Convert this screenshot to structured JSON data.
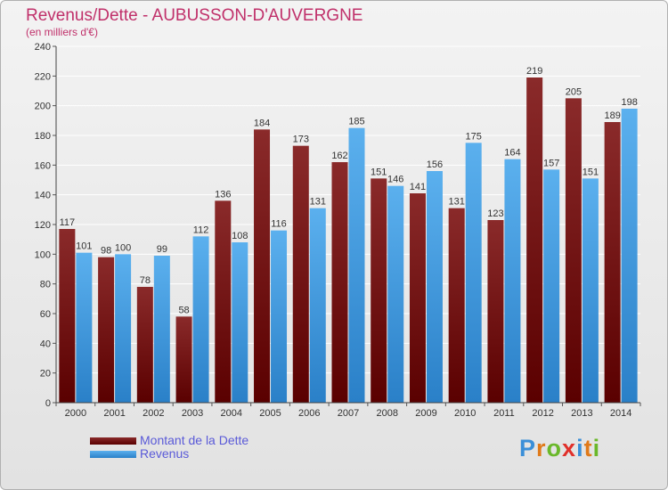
{
  "header": {
    "title": "Revenus/Dette - AUBUSSON-D'AUVERGNE",
    "subtitle": "(en milliers d'€)"
  },
  "colors": {
    "dette_top": "#8a2a2a",
    "dette_bottom": "#5a0000",
    "revenus_top": "#5bb0ee",
    "revenus_bottom": "#2a80c8",
    "title": "#c0306a",
    "legend_text": "#5a5ad8"
  },
  "chart_data": {
    "type": "bar",
    "title": "Revenus/Dette - AUBUSSON-D'AUVERGNE",
    "subtitle": "(en milliers d'€)",
    "categories": [
      "2000",
      "2001",
      "2002",
      "2003",
      "2004",
      "2005",
      "2006",
      "2007",
      "2008",
      "2009",
      "2010",
      "2011",
      "2012",
      "2013",
      "2014"
    ],
    "series": [
      {
        "name": "Montant de la Dette",
        "values": [
          117,
          98,
          78,
          58,
          136,
          184,
          173,
          162,
          151,
          141,
          131,
          123,
          219,
          205,
          189
        ]
      },
      {
        "name": "Revenus",
        "values": [
          101,
          100,
          99,
          112,
          108,
          116,
          131,
          185,
          146,
          156,
          175,
          164,
          157,
          151,
          198
        ]
      }
    ],
    "ylim": [
      0,
      240
    ],
    "yticks": [
      0,
      20,
      40,
      60,
      80,
      100,
      120,
      140,
      160,
      180,
      200,
      220,
      240
    ],
    "grid": true,
    "legend_position": "bottom-left"
  },
  "legend": {
    "items": [
      {
        "label": "Montant de la Dette"
      },
      {
        "label": "Revenus"
      }
    ]
  },
  "logo": {
    "letters": [
      "P",
      "r",
      "o",
      "x",
      "i",
      "t",
      "i"
    ],
    "colors": [
      "#3b8fd8",
      "#e07a1a",
      "#6ab82a",
      "#e0302a",
      "#3b8fd8",
      "#e07a1a",
      "#6ab82a"
    ]
  }
}
